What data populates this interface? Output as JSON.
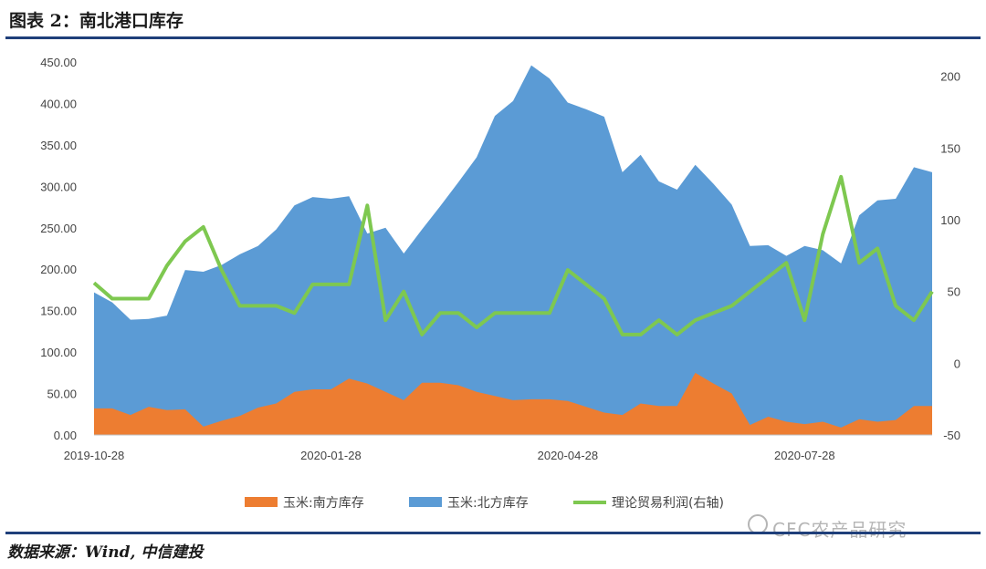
{
  "header": {
    "title": "图表 2：南北港口库存"
  },
  "footer": {
    "source": "数据来源：Wind, 中信建投"
  },
  "watermark": {
    "text": "CFC农产品研究"
  },
  "chart_data": {
    "type": "area",
    "x_ticks": [
      "2019-10-28",
      "2020-01-28",
      "2020-04-28",
      "2020-07-28"
    ],
    "y_left_ticks": [
      "0.00",
      "50.00",
      "100.00",
      "150.00",
      "200.00",
      "250.00",
      "300.00",
      "350.00",
      "400.00",
      "450.00"
    ],
    "y_right_ticks": [
      "-50",
      "0",
      "50",
      "100",
      "150",
      "200"
    ],
    "ylim_left": [
      0,
      450
    ],
    "ylim_right": [
      -50,
      210
    ],
    "grid": false,
    "legend_position": "bottom",
    "series": [
      {
        "name": "玉米:南方库存",
        "kind": "area",
        "color": "#ed7d31",
        "values": [
          32,
          32,
          24,
          34,
          30,
          31,
          10,
          17,
          23,
          33,
          38,
          52,
          55,
          55,
          68,
          62,
          52,
          42,
          63,
          63,
          60,
          52,
          47,
          42,
          43,
          43,
          41,
          34,
          27,
          24,
          38,
          35,
          35,
          75,
          62,
          50,
          12,
          22,
          16,
          13,
          16,
          9,
          19,
          16,
          18,
          35,
          35
        ]
      },
      {
        "name": "玉米:北方库存",
        "kind": "area",
        "color": "#5b9bd5",
        "values": [
          172,
          160,
          139,
          140,
          144,
          199,
          197,
          205,
          218,
          228,
          248,
          277,
          287,
          285,
          288,
          243,
          250,
          219,
          248,
          276,
          305,
          335,
          385,
          403,
          446,
          430,
          401,
          393,
          384,
          317,
          338,
          306,
          296,
          326,
          303,
          278,
          228,
          229,
          216,
          228,
          223,
          207,
          265,
          283,
          285,
          323,
          317
        ]
      },
      {
        "name": "理论贸易利润(右轴)",
        "kind": "line",
        "axis": "right",
        "color": "#7ec850",
        "values": [
          56,
          45,
          45,
          45,
          68,
          85,
          95,
          65,
          40,
          40,
          40,
          35,
          55,
          55,
          55,
          110,
          30,
          50,
          20,
          35,
          35,
          25,
          35,
          35,
          35,
          35,
          65,
          55,
          45,
          20,
          20,
          30,
          20,
          30,
          35,
          40,
          50,
          60,
          70,
          30,
          90,
          130,
          70,
          80,
          40,
          30,
          50
        ]
      }
    ]
  }
}
